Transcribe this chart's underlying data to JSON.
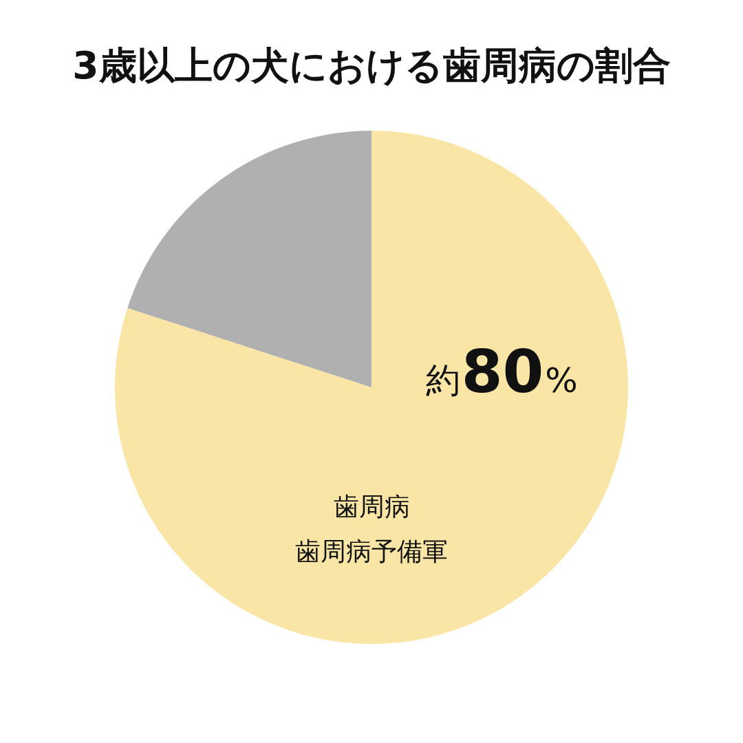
{
  "chart_data": {
    "type": "pie",
    "title": "3歳以上の犬における歯周病の割合",
    "categories": [
      "歯周病歯周病予備軍",
      null
    ],
    "values": [
      80,
      20
    ],
    "colors": [
      "#f9e6a6",
      "#b0b0b0"
    ],
    "value_labels": [
      "約80%",
      null
    ]
  }
}
